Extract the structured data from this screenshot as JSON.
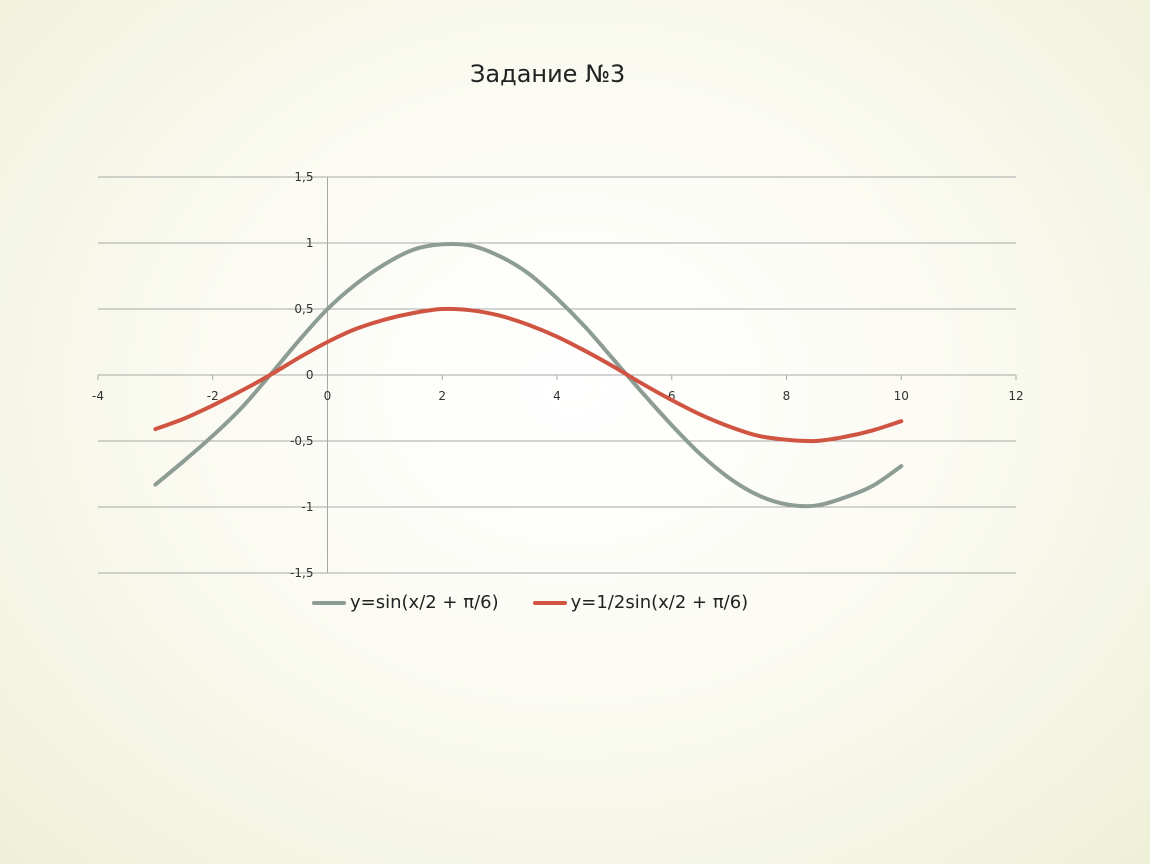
{
  "title": "Задание №3",
  "chart_data": {
    "type": "line",
    "title": "",
    "xlabel": "",
    "ylabel": "",
    "xlim": [
      -4,
      12
    ],
    "ylim": [
      -1.5,
      1.5
    ],
    "x_ticks": [
      "-4",
      "-2",
      "0",
      "2",
      "4",
      "6",
      "8",
      "10",
      "12"
    ],
    "y_ticks": [
      "1,5",
      "1",
      "0,5",
      "0",
      "-0,5",
      "-1",
      "-1,5"
    ],
    "x_tick_values": [
      -4,
      -2,
      0,
      2,
      4,
      6,
      8,
      10,
      12
    ],
    "y_tick_values": [
      1.5,
      1,
      0.5,
      0,
      -0.5,
      -1,
      -1.5
    ],
    "grid": "horizontal",
    "legend_position": "bottom",
    "x": [
      -3,
      -2.5,
      -2,
      -1.5,
      -1,
      -0.5,
      0,
      0.5,
      1,
      1.5,
      2,
      2.5,
      3,
      3.5,
      4,
      4.5,
      5,
      5.5,
      6,
      6.5,
      7,
      7.5,
      8,
      8.5,
      9,
      9.5,
      10
    ],
    "series": [
      {
        "name": "y=sin(x/2 + π/6)",
        "color": "#8d9c94",
        "values": [
          -0.83,
          -0.65,
          -0.46,
          -0.25,
          0.0,
          0.26,
          0.5,
          0.69,
          0.84,
          0.95,
          0.99,
          0.98,
          0.9,
          0.77,
          0.58,
          0.36,
          0.11,
          -0.14,
          -0.38,
          -0.6,
          -0.78,
          -0.91,
          -0.98,
          -0.99,
          -0.93,
          -0.84,
          -0.69
        ]
      },
      {
        "name": "y=1/2sin(x/2 + π/6)",
        "color": "#cf5441",
        "values": [
          -0.41,
          -0.33,
          -0.23,
          -0.12,
          0.0,
          0.13,
          0.25,
          0.35,
          0.42,
          0.47,
          0.5,
          0.49,
          0.45,
          0.38,
          0.29,
          0.18,
          0.06,
          -0.07,
          -0.19,
          -0.3,
          -0.39,
          -0.46,
          -0.49,
          -0.5,
          -0.47,
          -0.42,
          -0.35
        ]
      }
    ]
  }
}
